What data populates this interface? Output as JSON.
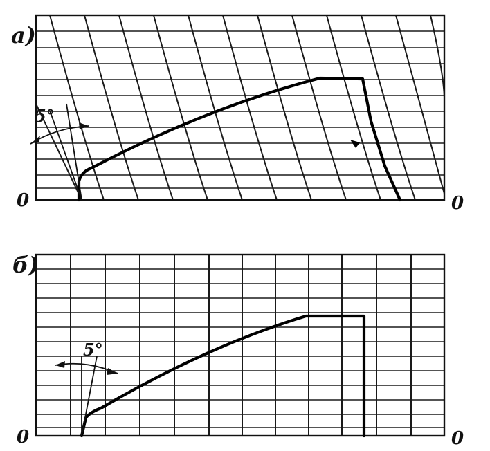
{
  "panel_a": {
    "label": "а)",
    "angle_label": "5°",
    "origin_left": "0",
    "origin_right": "0"
  },
  "panel_b": {
    "label": "б)",
    "angle_label": "5°",
    "origin_left": "0",
    "origin_right": "0"
  }
}
